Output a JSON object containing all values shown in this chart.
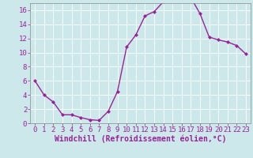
{
  "x": [
    0,
    1,
    2,
    3,
    4,
    5,
    6,
    7,
    8,
    9,
    10,
    11,
    12,
    13,
    14,
    15,
    16,
    17,
    18,
    19,
    20,
    21,
    22,
    23
  ],
  "y": [
    6,
    4,
    3,
    1.2,
    1.2,
    0.8,
    0.5,
    0.4,
    1.7,
    4.5,
    10.8,
    12.5,
    15.2,
    15.8,
    17.2,
    17.5,
    17.6,
    17.8,
    15.5,
    12.2,
    11.8,
    11.5,
    11.0,
    9.8
  ],
  "line_color": "#992299",
  "marker": "D",
  "marker_size": 2,
  "bg_color": "#cde8ea",
  "grid_color": "#b0d8dc",
  "xlabel": "Windchill (Refroidissement éolien,°C)",
  "xlim": [
    -0.5,
    23.5
  ],
  "ylim": [
    0,
    17
  ],
  "yticks": [
    0,
    2,
    4,
    6,
    8,
    10,
    12,
    14,
    16
  ],
  "xticks": [
    0,
    1,
    2,
    3,
    4,
    5,
    6,
    7,
    8,
    9,
    10,
    11,
    12,
    13,
    14,
    15,
    16,
    17,
    18,
    19,
    20,
    21,
    22,
    23
  ],
  "tick_color": "#992299",
  "label_color": "#992299",
  "axis_color": "#888888",
  "font_size": 6.5,
  "xlabel_font_size": 7
}
